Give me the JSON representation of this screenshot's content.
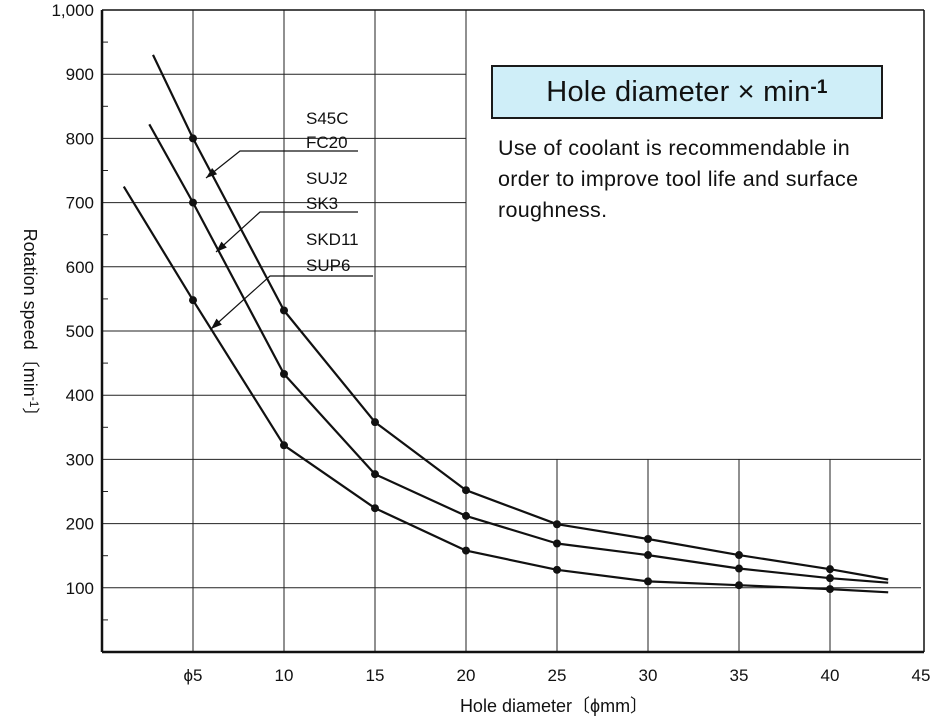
{
  "chart_data": {
    "type": "line",
    "xlabel": "Hole diameter〔ϕmm〕",
    "ylabel": "Rotation speed〔min",
    "ylabel_sup": "-1",
    "ylabel_end": "〕",
    "xlim": [
      0,
      45
    ],
    "ylim": [
      0,
      1000
    ],
    "x_ticks": [
      {
        "value": 5,
        "label": "ϕ5"
      },
      {
        "value": 10,
        "label": "10"
      },
      {
        "value": 15,
        "label": "15"
      },
      {
        "value": 20,
        "label": "20"
      },
      {
        "value": 25,
        "label": "25"
      },
      {
        "value": 30,
        "label": "30"
      },
      {
        "value": 35,
        "label": "35"
      },
      {
        "value": 40,
        "label": "40"
      },
      {
        "value": 45,
        "label": "45"
      }
    ],
    "y_ticks": [
      {
        "value": 100,
        "label": "100"
      },
      {
        "value": 200,
        "label": "200"
      },
      {
        "value": 300,
        "label": "300"
      },
      {
        "value": 400,
        "label": "400"
      },
      {
        "value": 500,
        "label": "500"
      },
      {
        "value": 600,
        "label": "600"
      },
      {
        "value": 700,
        "label": "700"
      },
      {
        "value": 800,
        "label": "800"
      },
      {
        "value": 900,
        "label": "900"
      },
      {
        "value": 1000,
        "label": "1,000"
      }
    ],
    "grid": true,
    "series": [
      {
        "name_lines": [
          "S45C",
          "FC20"
        ],
        "points": [
          [
            5,
            800
          ],
          [
            10,
            532
          ],
          [
            15,
            358
          ],
          [
            20,
            252
          ],
          [
            25,
            199
          ],
          [
            30,
            176
          ],
          [
            35,
            151
          ],
          [
            40,
            129
          ]
        ],
        "line": [
          [
            2.8,
            930
          ],
          [
            5,
            800
          ],
          [
            10,
            532
          ],
          [
            15,
            358
          ],
          [
            20,
            252
          ],
          [
            25,
            199
          ],
          [
            30,
            176
          ],
          [
            35,
            151
          ],
          [
            40,
            129
          ],
          [
            43.2,
            113
          ]
        ]
      },
      {
        "name_lines": [
          "SUJ2",
          "SK3"
        ],
        "points": [
          [
            5,
            700
          ],
          [
            10,
            433
          ],
          [
            15,
            277
          ],
          [
            20,
            212
          ],
          [
            25,
            169
          ],
          [
            30,
            151
          ],
          [
            35,
            130
          ],
          [
            40,
            115
          ]
        ],
        "line": [
          [
            2.6,
            822
          ],
          [
            5,
            700
          ],
          [
            10,
            433
          ],
          [
            15,
            277
          ],
          [
            20,
            212
          ],
          [
            25,
            169
          ],
          [
            30,
            151
          ],
          [
            35,
            130
          ],
          [
            40,
            115
          ],
          [
            43.2,
            108
          ]
        ]
      },
      {
        "name_lines": [
          "SKD11",
          "SUP6"
        ],
        "points": [
          [
            5,
            548
          ],
          [
            10,
            322
          ],
          [
            15,
            224
          ],
          [
            20,
            158
          ],
          [
            25,
            128
          ],
          [
            30,
            110
          ],
          [
            35,
            104
          ],
          [
            40,
            98
          ]
        ],
        "line": [
          [
            1.2,
            725
          ],
          [
            5,
            548
          ],
          [
            10,
            322
          ],
          [
            15,
            224
          ],
          [
            20,
            158
          ],
          [
            25,
            128
          ],
          [
            30,
            110
          ],
          [
            35,
            104
          ],
          [
            40,
            98
          ],
          [
            43.2,
            93
          ]
        ]
      }
    ]
  },
  "info_box": {
    "title": "Hole diameter × min",
    "title_sup": "-1",
    "note": "Use of coolant is recommendable in order to improve tool life and surface roughness."
  }
}
